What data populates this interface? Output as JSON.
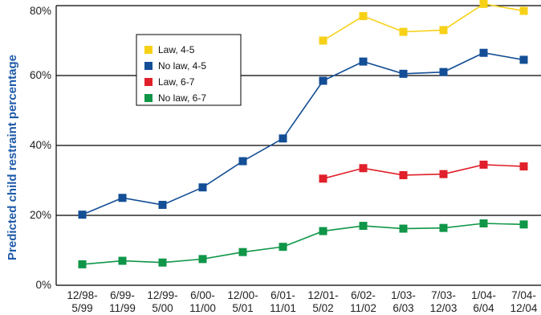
{
  "chart_data": {
    "type": "line",
    "ylabel": "Predicted child restraint percentage",
    "ylim": [
      0,
      80
    ],
    "yticks": [
      0,
      20,
      40,
      60,
      80
    ],
    "ytick_labels": [
      "0%",
      "20%",
      "40%",
      "60%",
      "80%"
    ],
    "grid": "horizontal lines at 20%, 60% and 80% (black); none at 40% gridline-less? (lines at 20, 40, 60, 80)",
    "legend_position": "upper-left inside plot",
    "categories": [
      {
        "line1": "12/98-",
        "line2": "5/99"
      },
      {
        "line1": "6/99-",
        "line2": "11/99"
      },
      {
        "line1": "12/99-",
        "line2": "5/00"
      },
      {
        "line1": "6/00-",
        "line2": "11/00"
      },
      {
        "line1": "12/00-",
        "line2": "5/01"
      },
      {
        "line1": "6/01-",
        "line2": "11/01"
      },
      {
        "line1": "12/01-",
        "line2": "5/02"
      },
      {
        "line1": "6/02-",
        "line2": "11/02"
      },
      {
        "line1": "1/03-",
        "line2": "6/03"
      },
      {
        "line1": "7/03-",
        "line2": "12/03"
      },
      {
        "line1": "1/04-",
        "line2": "6/04"
      },
      {
        "line1": "7/04-",
        "line2": "12/04"
      }
    ],
    "series": [
      {
        "name": "Law, 4-5",
        "color": "#f7d117",
        "values": [
          null,
          null,
          null,
          null,
          null,
          null,
          70.0,
          77.0,
          72.5,
          73.0,
          80.5,
          78.5
        ]
      },
      {
        "name": "No law, 4-5",
        "color": "#134e96",
        "values": [
          20.2,
          25.0,
          23.0,
          28.0,
          35.5,
          42.0,
          58.5,
          64.0,
          60.5,
          61.0,
          66.5,
          64.5
        ]
      },
      {
        "name": "Law, 6-7",
        "color": "#e0202a",
        "values": [
          null,
          null,
          null,
          null,
          null,
          null,
          30.5,
          33.5,
          31.5,
          31.8,
          34.5,
          34.0
        ]
      },
      {
        "name": "No law, 6-7",
        "color": "#0f9648",
        "values": [
          6.0,
          7.0,
          6.5,
          7.5,
          9.5,
          11.0,
          15.5,
          17.0,
          16.2,
          16.4,
          17.7,
          17.4
        ]
      }
    ]
  }
}
